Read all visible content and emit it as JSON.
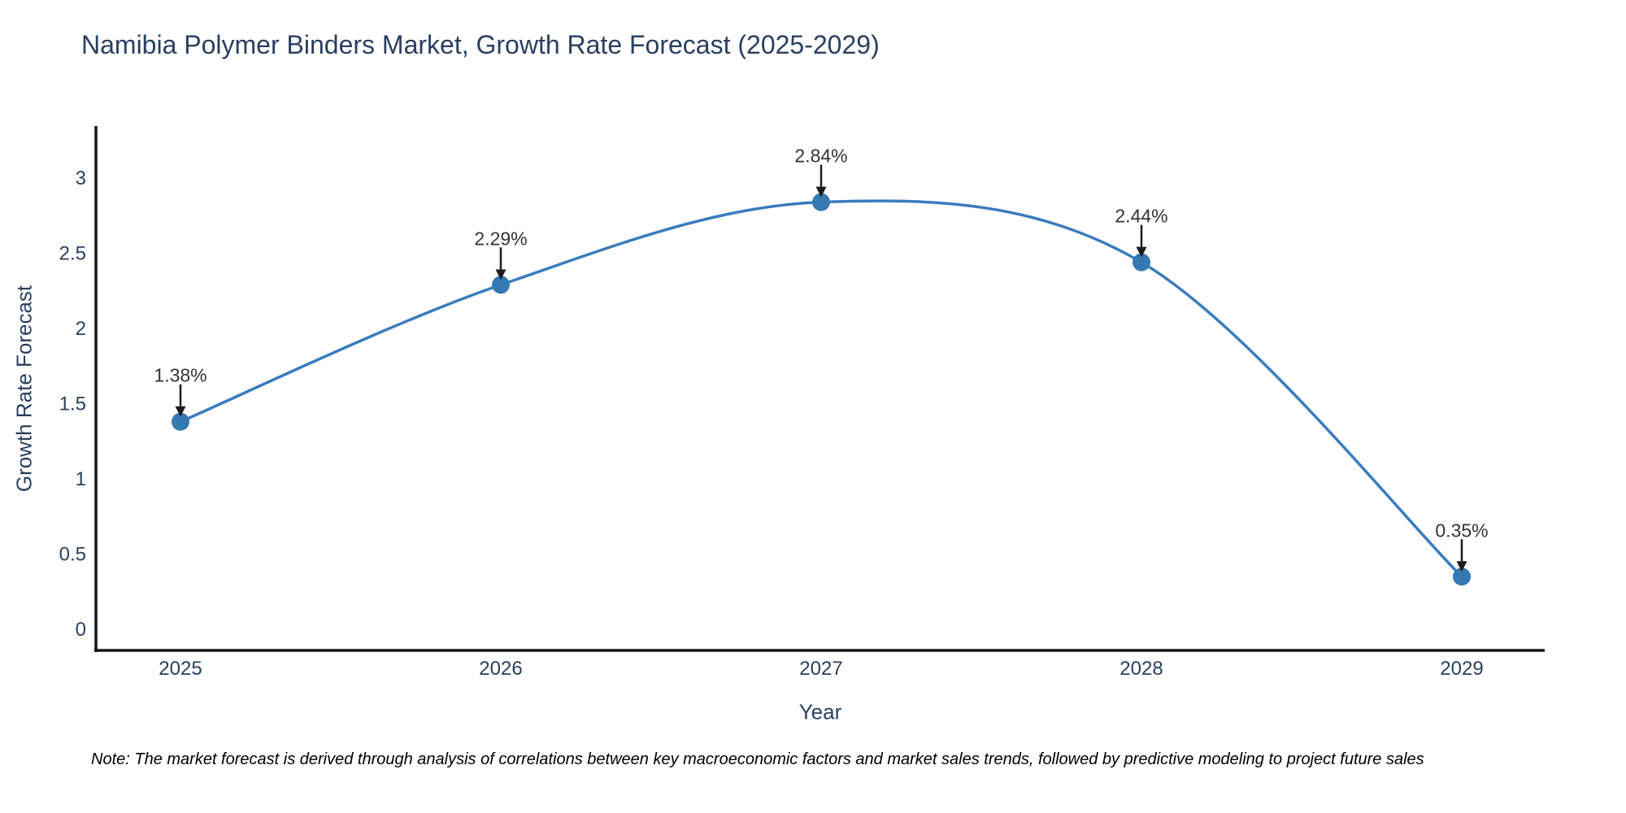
{
  "title": {
    "text": "Namibia Polymer Binders Market, Growth Rate Forecast (2025-2029)",
    "color": "#2a3f5f"
  },
  "note": {
    "text": "Note: The market forecast is derived through analysis of correlations between key macroeconomic factors and market sales trends, followed by predictive modeling to project future sales",
    "color": "#000000"
  },
  "chart_data": {
    "type": "line",
    "line_shape": "spline",
    "title": "Namibia Polymer Binders Market, Growth Rate Forecast (2025-2029)",
    "x": [
      "2025",
      "2026",
      "2027",
      "2028",
      "2029"
    ],
    "series": [
      {
        "name": "Growth Rate Forecast",
        "values": [
          1.38,
          2.29,
          2.84,
          2.44,
          0.35
        ]
      }
    ],
    "point_labels": [
      "1.38%",
      "2.29%",
      "2.84%",
      "2.44%",
      "0.35%"
    ],
    "xlabel": "Year",
    "ylabel": "Growth Rate Forecast",
    "yticks": [
      0,
      0.5,
      1,
      1.5,
      2,
      2.5,
      3
    ],
    "ylim": [
      -0.15,
      3.35
    ],
    "grid": false,
    "legend": "none",
    "line_color": "#3a7cbd",
    "marker_color": "#3579b3",
    "axis_color": "#161616",
    "tick_color": "#2a3f5f",
    "annotation_color": "#333333",
    "arrow_color": "#1c1c1c"
  }
}
